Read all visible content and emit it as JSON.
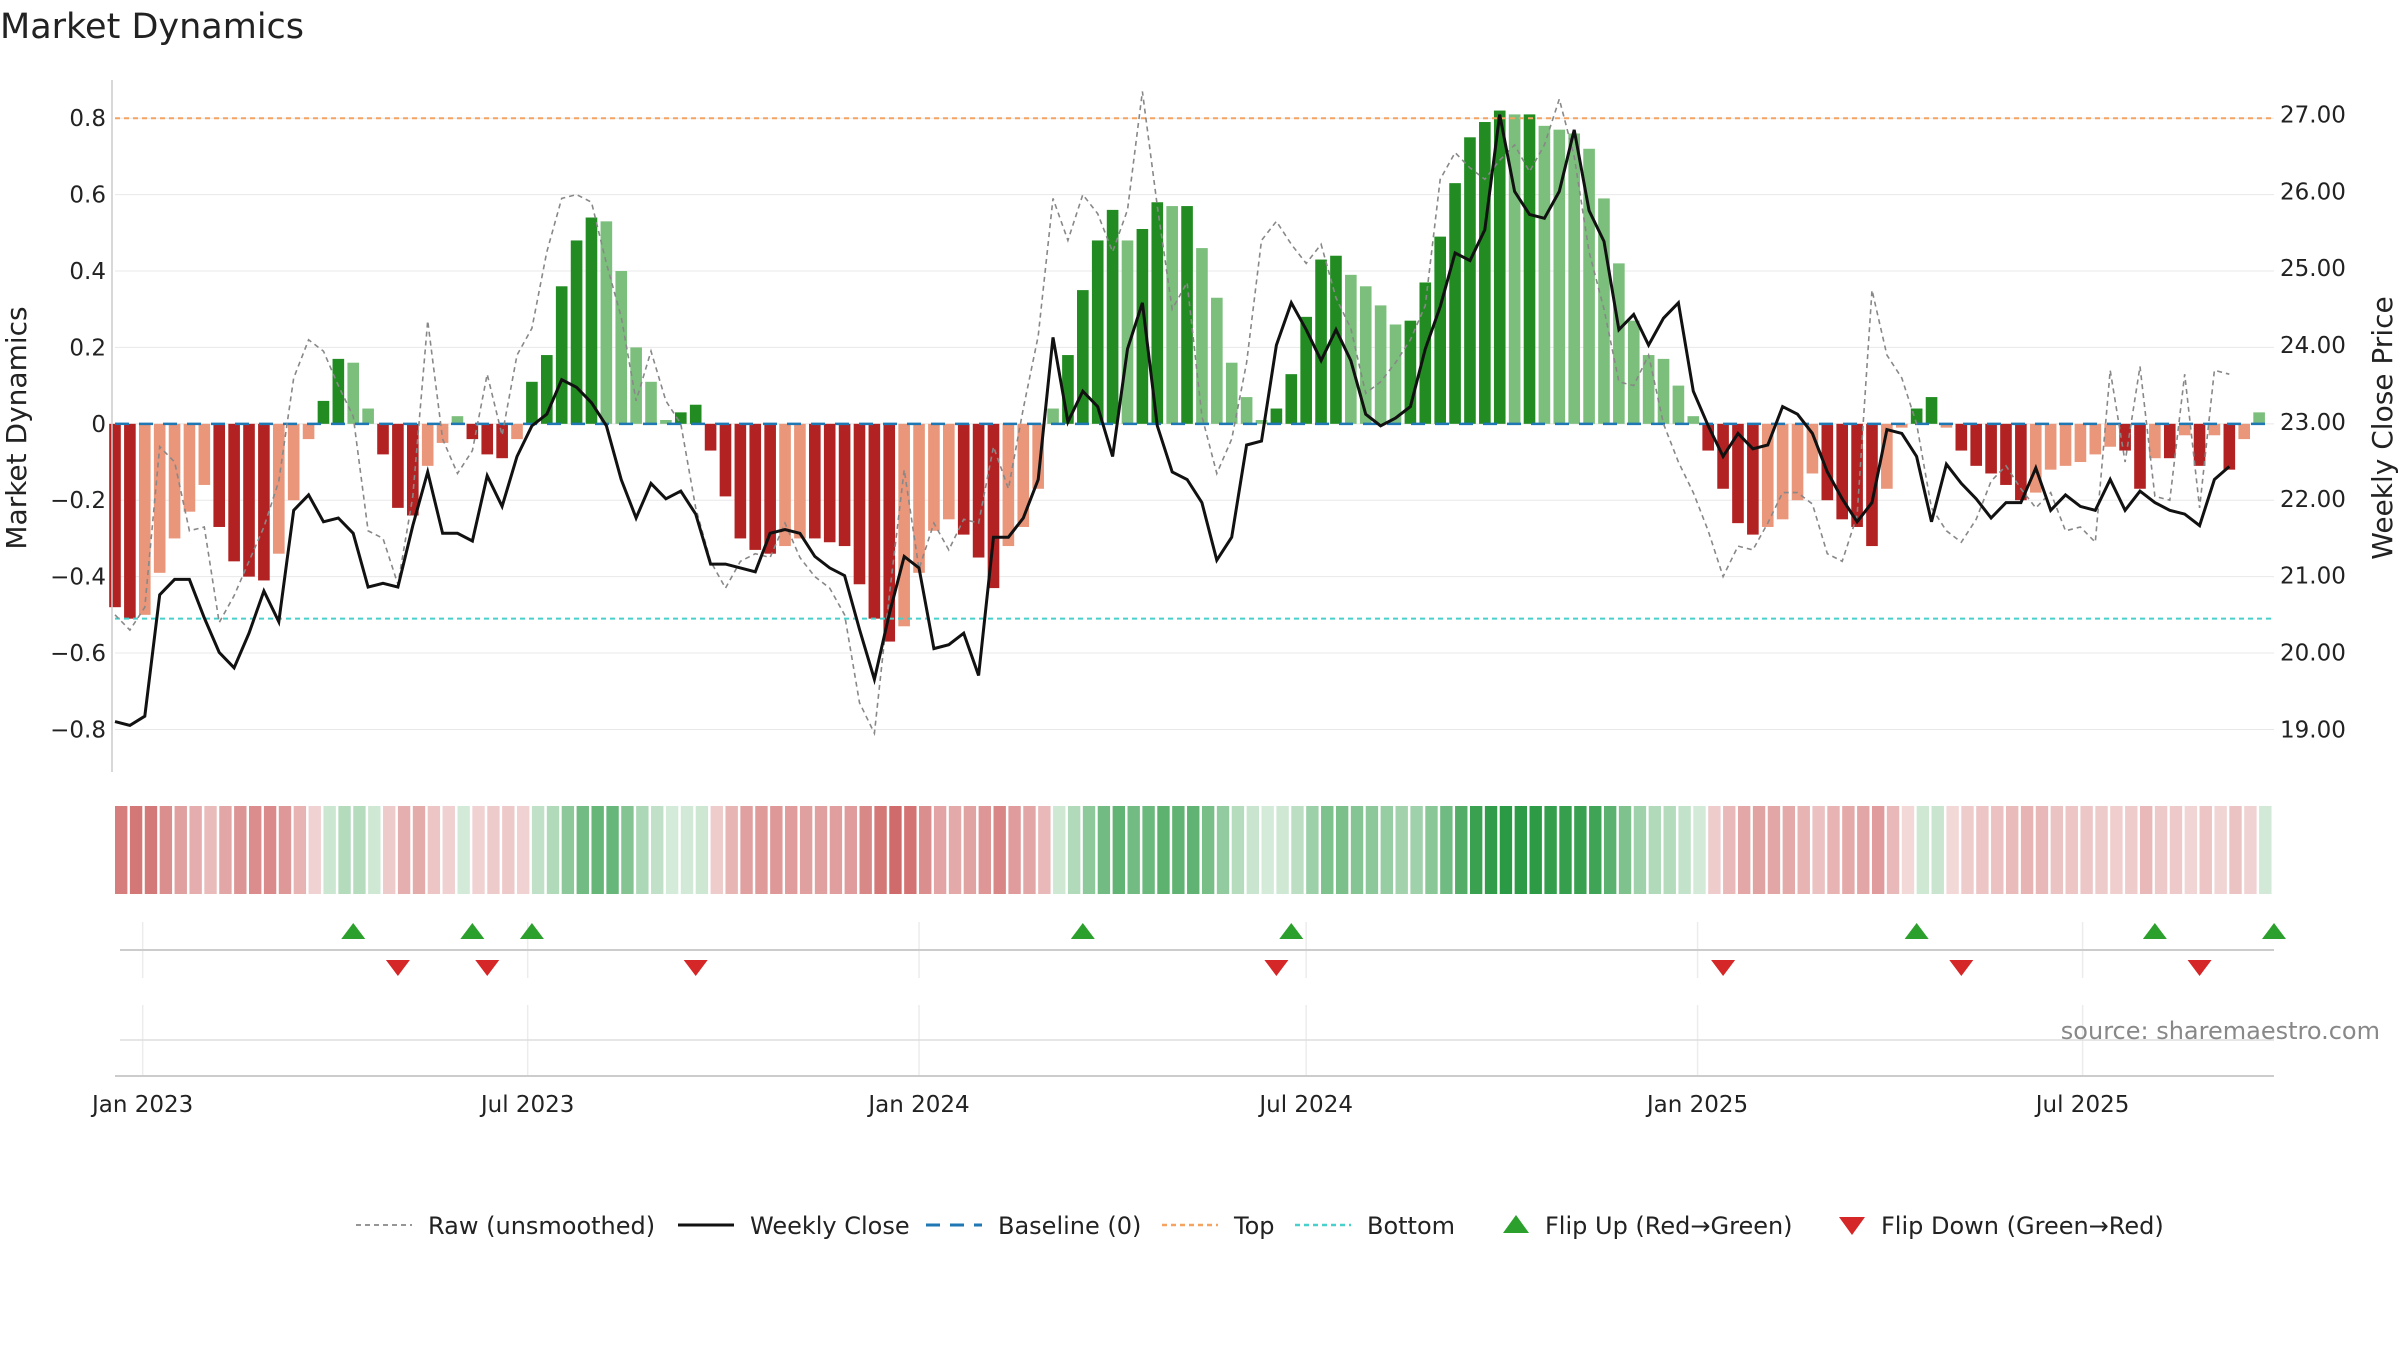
{
  "chart_data": {
    "type": "bar",
    "title": "Market Dynamics",
    "ylabel_left": "Market Dynamics",
    "ylabel_right": "Weekly Close Price",
    "ylim_left": [
      -0.88,
      0.9
    ],
    "ylim_right": [
      18.6,
      27.45
    ],
    "left_ticks": [
      {
        "v": 0.8,
        "label": "0.8"
      },
      {
        "v": 0.6,
        "label": "0.6"
      },
      {
        "v": 0.4,
        "label": "0.4"
      },
      {
        "v": 0.2,
        "label": "0.2"
      },
      {
        "v": 0.0,
        "label": "0"
      },
      {
        "v": -0.2,
        "label": "−0.2"
      },
      {
        "v": -0.4,
        "label": "−0.4"
      },
      {
        "v": -0.6,
        "label": "−0.6"
      },
      {
        "v": -0.8,
        "label": "−0.8"
      }
    ],
    "right_ticks": [
      {
        "v": 27,
        "label": "27.00"
      },
      {
        "v": 26,
        "label": "26.00"
      },
      {
        "v": 25,
        "label": "25.00"
      },
      {
        "v": 24,
        "label": "24.00"
      },
      {
        "v": 23,
        "label": "23.00"
      },
      {
        "v": 22,
        "label": "22.00"
      },
      {
        "v": 21,
        "label": "21.00"
      },
      {
        "v": 20,
        "label": "20.00"
      },
      {
        "v": 19,
        "label": "19.00"
      }
    ],
    "x_start": "2022-12-19",
    "x_end": "2025-09-29",
    "x_ticks": [
      {
        "date": "2023-01-01",
        "label": "Jan 2023"
      },
      {
        "date": "2023-07-01",
        "label": "Jul 2023"
      },
      {
        "date": "2024-01-01",
        "label": "Jan 2024"
      },
      {
        "date": "2024-07-01",
        "label": "Jul 2024"
      },
      {
        "date": "2025-01-01",
        "label": "Jan 2025"
      },
      {
        "date": "2025-07-01",
        "label": "Jul 2025"
      }
    ],
    "top_level": 0.8,
    "bottom_level": -0.51,
    "baseline": 0,
    "grid": true,
    "legend_position": "bottom-center",
    "colors": {
      "strong_green": "#228b22",
      "light_green": "#7cbf7c",
      "strong_red": "#b22222",
      "light_red": "#e9967a",
      "raw": "#888888",
      "close": "#111111",
      "baseline": "#1f77b4",
      "top": "#f4a460",
      "bottom": "#48d1cc",
      "flip_up": "#2ca02c",
      "flip_down": "#d62728"
    },
    "series": [
      {
        "name": "Market Dynamics",
        "start_date": "2022-12-19",
        "interval": "weekly",
        "values": [
          -0.48,
          -0.51,
          -0.5,
          -0.39,
          -0.3,
          -0.23,
          -0.16,
          -0.27,
          -0.36,
          -0.4,
          -0.41,
          -0.34,
          -0.2,
          -0.04,
          0.06,
          0.17,
          0.16,
          0.04,
          -0.08,
          -0.22,
          -0.24,
          -0.11,
          -0.05,
          0.02,
          -0.04,
          -0.08,
          -0.09,
          -0.04,
          0.11,
          0.18,
          0.36,
          0.48,
          0.54,
          0.53,
          0.4,
          0.2,
          0.11,
          0.01,
          0.03,
          0.05,
          -0.07,
          -0.19,
          -0.3,
          -0.33,
          -0.34,
          -0.32,
          -0.3,
          -0.3,
          -0.31,
          -0.32,
          -0.42,
          -0.51,
          -0.57,
          -0.53,
          -0.39,
          -0.28,
          -0.25,
          -0.29,
          -0.35,
          -0.43,
          -0.32,
          -0.27,
          -0.17,
          0.04,
          0.18,
          0.35,
          0.48,
          0.56,
          0.48,
          0.51,
          0.58,
          0.57,
          0.57,
          0.46,
          0.33,
          0.16,
          0.07,
          0.01,
          0.04,
          0.13,
          0.28,
          0.43,
          0.44,
          0.39,
          0.36,
          0.31,
          0.26,
          0.27,
          0.37,
          0.49,
          0.63,
          0.75,
          0.79,
          0.82,
          0.81,
          0.81,
          0.78,
          0.77,
          0.76,
          0.72,
          0.59,
          0.42,
          0.27,
          0.18,
          0.17,
          0.1,
          0.02,
          -0.07,
          -0.17,
          -0.26,
          -0.29,
          -0.27,
          -0.25,
          -0.2,
          -0.13,
          -0.2,
          -0.25,
          -0.27,
          -0.32,
          -0.17,
          -0.01,
          0.04,
          0.07,
          -0.01,
          -0.07,
          -0.11,
          -0.13,
          -0.16,
          -0.2,
          -0.18,
          -0.12,
          -0.11,
          -0.1,
          -0.08,
          -0.06,
          -0.07,
          -0.17,
          -0.09,
          -0.09,
          -0.03,
          -0.11,
          -0.03,
          -0.12,
          -0.04,
          0.03
        ]
      },
      {
        "name": "Raw (unsmoothed)",
        "start_date": "2022-12-19",
        "interval": "weekly",
        "values": [
          -0.5,
          -0.54,
          -0.48,
          -0.06,
          -0.1,
          -0.28,
          -0.27,
          -0.52,
          -0.45,
          -0.36,
          -0.27,
          -0.15,
          0.12,
          0.22,
          0.19,
          0.1,
          0.02,
          -0.28,
          -0.3,
          -0.42,
          -0.19,
          0.27,
          -0.04,
          -0.13,
          -0.07,
          0.13,
          -0.03,
          0.18,
          0.25,
          0.45,
          0.59,
          0.6,
          0.58,
          0.42,
          0.28,
          0.06,
          0.19,
          0.06,
          0.0,
          -0.22,
          -0.36,
          -0.43,
          -0.36,
          -0.34,
          -0.35,
          -0.26,
          -0.35,
          -0.4,
          -0.43,
          -0.5,
          -0.73,
          -0.81,
          -0.45,
          -0.12,
          -0.38,
          -0.26,
          -0.33,
          -0.25,
          -0.26,
          -0.06,
          -0.17,
          0.04,
          0.23,
          0.59,
          0.48,
          0.6,
          0.55,
          0.45,
          0.56,
          0.87,
          0.57,
          0.3,
          0.37,
          0.02,
          -0.13,
          -0.04,
          0.16,
          0.48,
          0.53,
          0.47,
          0.42,
          0.47,
          0.33,
          0.25,
          0.08,
          0.11,
          0.16,
          0.22,
          0.31,
          0.64,
          0.71,
          0.67,
          0.64,
          0.69,
          0.73,
          0.66,
          0.73,
          0.85,
          0.7,
          0.45,
          0.3,
          0.11,
          0.1,
          0.18,
          0.0,
          -0.1,
          -0.18,
          -0.28,
          -0.4,
          -0.32,
          -0.33,
          -0.26,
          -0.18,
          -0.18,
          -0.21,
          -0.34,
          -0.36,
          -0.24,
          0.35,
          0.18,
          0.12,
          0.0,
          -0.22,
          -0.28,
          -0.31,
          -0.25,
          -0.15,
          -0.11,
          -0.17,
          -0.22,
          -0.18,
          -0.28,
          -0.27,
          -0.31,
          0.14,
          -0.1,
          0.15,
          -0.19,
          -0.2,
          0.13,
          -0.22,
          0.14,
          0.13
        ]
      },
      {
        "name": "Weekly Close",
        "start_date": "2022-12-19",
        "interval": "weekly",
        "values": [
          19.1,
          19.05,
          19.17,
          20.75,
          20.95,
          20.95,
          20.45,
          20.0,
          19.8,
          20.25,
          20.8,
          20.4,
          21.85,
          22.05,
          21.7,
          21.75,
          21.55,
          20.85,
          20.9,
          20.85,
          21.65,
          22.35,
          21.55,
          21.55,
          21.45,
          22.3,
          21.9,
          22.55,
          22.95,
          23.1,
          23.55,
          23.45,
          23.25,
          22.95,
          22.25,
          21.75,
          22.2,
          22.0,
          22.1,
          21.8,
          21.15,
          21.15,
          21.1,
          21.05,
          21.55,
          21.6,
          21.55,
          21.25,
          21.1,
          21.0,
          20.3,
          19.65,
          20.5,
          21.25,
          21.1,
          20.05,
          20.1,
          20.25,
          19.7,
          21.5,
          21.5,
          21.75,
          22.25,
          24.1,
          23.0,
          23.4,
          23.2,
          22.55,
          23.95,
          24.55,
          22.95,
          22.35,
          22.25,
          21.95,
          21.2,
          21.5,
          22.7,
          22.75,
          24.0,
          24.55,
          24.2,
          23.8,
          24.2,
          23.8,
          23.1,
          22.95,
          23.05,
          23.2,
          23.95,
          24.5,
          25.2,
          25.1,
          25.5,
          27.0,
          26.0,
          25.7,
          25.65,
          26.0,
          26.8,
          25.75,
          25.35,
          24.2,
          24.4,
          24.0,
          24.35,
          24.55,
          23.4,
          22.95,
          22.55,
          22.85,
          22.65,
          22.7,
          23.2,
          23.1,
          22.85,
          22.35,
          22.0,
          21.7,
          21.95,
          22.9,
          22.85,
          22.55,
          21.7,
          22.45,
          22.2,
          22.0,
          21.75,
          21.95,
          21.95,
          22.4,
          21.85,
          22.05,
          21.9,
          21.85,
          22.25,
          21.85,
          22.1,
          21.95,
          21.85,
          21.8,
          21.65,
          22.25,
          22.42
        ]
      }
    ],
    "flip_up_dates": [
      "2023-04-10",
      "2023-06-05",
      "2023-07-03",
      "2024-03-18",
      "2024-06-24",
      "2025-04-14",
      "2025-08-04",
      "2025-09-29"
    ],
    "flip_down_dates": [
      "2023-05-01",
      "2023-06-12",
      "2023-09-18",
      "2024-06-17",
      "2025-01-13",
      "2025-05-05",
      "2025-08-25"
    ],
    "legend": [
      {
        "key": "raw",
        "label": "Raw (unsmoothed)"
      },
      {
        "key": "close",
        "label": "Weekly Close"
      },
      {
        "key": "baseline",
        "label": "Baseline (0)"
      },
      {
        "key": "top",
        "label": "Top"
      },
      {
        "key": "bottom",
        "label": "Bottom"
      },
      {
        "key": "flip_up",
        "label": "Flip Up (Red→Green)"
      },
      {
        "key": "flip_down",
        "label": "Flip Down (Green→Red)"
      }
    ],
    "source": "source: sharemaestro.com"
  }
}
